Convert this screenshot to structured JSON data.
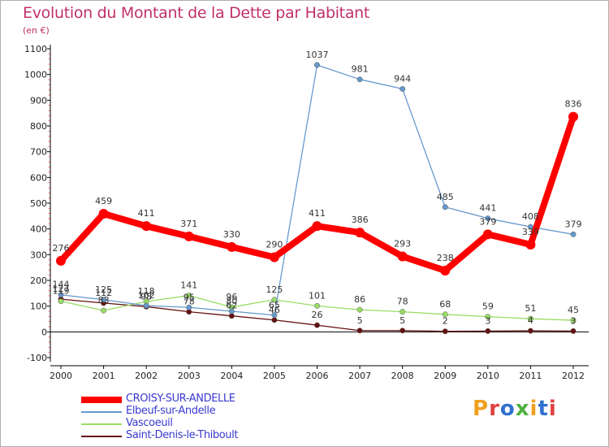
{
  "title": "Evolution du Montant de la Dette par Habitant",
  "unit": "(en €)",
  "logo": {
    "text": "Proxiti",
    "colors": [
      "#f0a020",
      "#e04040",
      "#3070d0",
      "#50b040",
      "#f0a020",
      "#3070d0",
      "#e04040"
    ]
  },
  "chart_data": {
    "type": "line",
    "title": "Evolution du Montant de la Dette par Habitant",
    "ylabel": "(en €)",
    "xlabel": "",
    "x": [
      "2000",
      "2001",
      "2002",
      "2003",
      "2004",
      "2005",
      "2006",
      "2007",
      "2008",
      "2009",
      "2010",
      "2011",
      "2012"
    ],
    "ylim": [
      -100,
      1100
    ],
    "yticks": [
      -100,
      0,
      100,
      200,
      300,
      400,
      500,
      600,
      700,
      800,
      900,
      1000,
      1100
    ],
    "grid": false,
    "legend": "bottom-left",
    "series": [
      {
        "name": "CROISY-SUR-ANDELLE",
        "color": "#ff0000",
        "values": [
          276,
          459,
          411,
          371,
          330,
          290,
          411,
          386,
          293,
          238,
          379,
          339,
          836
        ],
        "labels": [
          "276",
          "459",
          "411",
          "371",
          "330",
          "290",
          "411",
          "386",
          "293",
          "238",
          "379",
          "339",
          "836"
        ]
      },
      {
        "name": "Elbeuf-sur-Andelle",
        "color": "#6699cc",
        "values": [
          144,
          125,
          102,
          95,
          80,
          65,
          1037,
          981,
          944,
          485,
          441,
          408,
          379
        ],
        "labels": [
          "144",
          "125",
          "102",
          "95",
          "80",
          "65",
          "1037",
          "981",
          "944",
          "485",
          "441",
          "408",
          "379"
        ]
      },
      {
        "name": "Vascoeuil",
        "color": "#99dd66",
        "values": [
          119,
          83,
          118,
          141,
          96,
          125,
          101,
          86,
          78,
          68,
          59,
          51,
          45
        ],
        "labels": [
          "119",
          "83",
          "118",
          "141",
          "96",
          "125",
          "101",
          "86",
          "78",
          "68",
          "59",
          "51",
          "45"
        ]
      },
      {
        "name": "Saint-Denis-le-Thiboult",
        "color": "#661111",
        "values": [
          127,
          112,
          98,
          78,
          62,
          46,
          26,
          5,
          5,
          2,
          3,
          4,
          3
        ],
        "labels": [
          "127",
          "112",
          "98",
          "78",
          "62",
          "46",
          "26",
          "5",
          "5",
          "2",
          "3",
          "4",
          "3"
        ]
      }
    ]
  }
}
